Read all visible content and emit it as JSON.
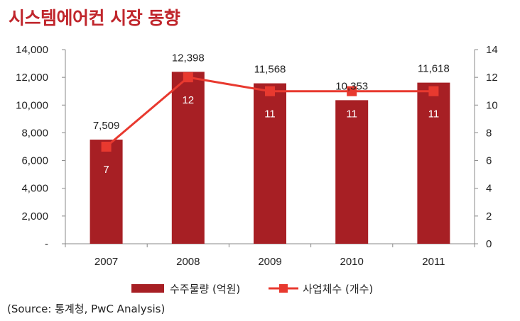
{
  "title": "시스템에어컨 시장 동향",
  "source": "(Source: 통계청, PwC Analysis)",
  "colors": {
    "bar": "#a71f24",
    "line": "#e8392f",
    "title": "#c0262c"
  },
  "chart_data": {
    "type": "bar+line",
    "categories": [
      "2007",
      "2008",
      "2009",
      "2010",
      "2011"
    ],
    "series": [
      {
        "name": "수주물량 (억원)",
        "type": "bar",
        "axis": "left",
        "values": [
          7509,
          12398,
          11568,
          10353,
          11618
        ],
        "labels": [
          "7,509",
          "12,398",
          "11,568",
          "10,353",
          "11,618"
        ]
      },
      {
        "name": "사업체수 (개수)",
        "type": "line",
        "axis": "right",
        "values": [
          7,
          12,
          11,
          11,
          11
        ],
        "labels": [
          "7",
          "12",
          "11",
          "11",
          "11"
        ]
      }
    ],
    "y_left": {
      "min": 0,
      "max": 14000,
      "step": 2000,
      "tick_labels": [
        "-",
        "2,000",
        "4,000",
        "6,000",
        "8,000",
        "10,000",
        "12,000",
        "14,000"
      ]
    },
    "y_right": {
      "min": 0,
      "max": 14,
      "step": 2,
      "tick_labels": [
        "0",
        "2",
        "4",
        "6",
        "8",
        "10",
        "12",
        "14"
      ]
    },
    "grid": false,
    "legend_position": "bottom"
  }
}
